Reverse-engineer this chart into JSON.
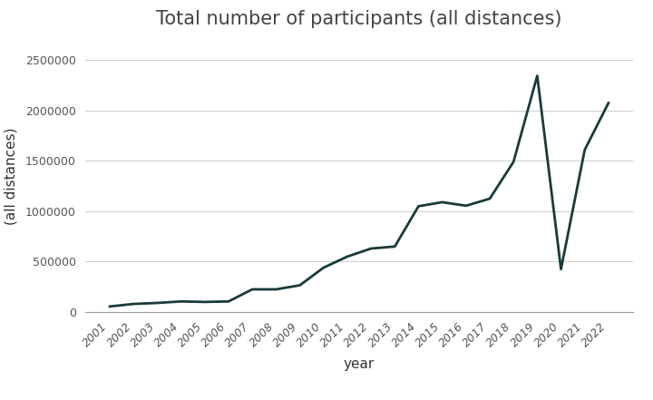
{
  "title": "Total number of participants (all distances)",
  "xlabel": "year",
  "ylabel": "(all distances)",
  "line_color": "#1b3a3a",
  "line_width": 2.0,
  "background_color": "#ffffff",
  "years": [
    2001,
    2002,
    2003,
    2004,
    2005,
    2006,
    2007,
    2008,
    2009,
    2010,
    2011,
    2012,
    2013,
    2014,
    2015,
    2016,
    2017,
    2018,
    2019,
    2020,
    2021,
    2022
  ],
  "values": [
    55000,
    80000,
    90000,
    105000,
    100000,
    105000,
    225000,
    225000,
    265000,
    440000,
    550000,
    630000,
    650000,
    1050000,
    1090000,
    1055000,
    1125000,
    1490000,
    2345000,
    425000,
    1610000,
    2075000
  ],
  "ylim": [
    0,
    2700000
  ],
  "yticks": [
    0,
    500000,
    1000000,
    1500000,
    2000000,
    2500000
  ],
  "ytick_labels": [
    "0",
    "500000",
    "1000000",
    "1500000",
    "2000000",
    "2500000"
  ],
  "title_fontsize": 15,
  "axis_label_fontsize": 11,
  "tick_fontsize": 9,
  "grid_color": "#cccccc",
  "grid_linewidth": 0.7,
  "figure_width": 7.2,
  "figure_height": 4.41,
  "dpi": 100
}
